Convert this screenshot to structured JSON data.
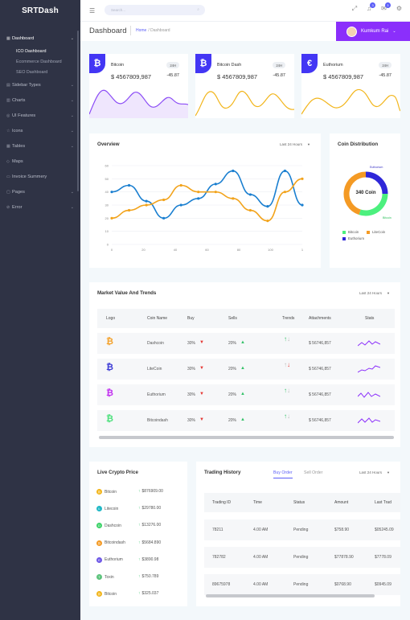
{
  "brand": "SRTDash",
  "sidebar": {
    "items": [
      {
        "label": "Dashboard",
        "icon": "dashboard-icon",
        "active": true
      },
      {
        "label": "Sidebar Types",
        "icon": "layout-icon"
      },
      {
        "label": "Charts",
        "icon": "chart-icon"
      },
      {
        "label": "UI Features",
        "icon": "palette-icon"
      },
      {
        "label": "Icons",
        "icon": "star-icon"
      },
      {
        "label": "Tables",
        "icon": "table-icon"
      },
      {
        "label": "Maps",
        "icon": "map-icon"
      },
      {
        "label": "Invoice Summery",
        "icon": "invoice-icon"
      },
      {
        "label": "Pages",
        "icon": "pages-icon"
      },
      {
        "label": "Error",
        "icon": "error-icon"
      }
    ],
    "sub": [
      "ICO Dashboard",
      "Ecommerce Dashboard",
      "SEO Dashboard"
    ]
  },
  "topbar": {
    "search_placeholder": "Search...",
    "badges": [
      "3",
      "3"
    ]
  },
  "title": {
    "page": "Dashboard",
    "home": "Home",
    "current": "Dashboard",
    "user": "Kumkum Rai"
  },
  "coins": [
    {
      "name": "Bitcoin",
      "symbol": "₿",
      "period": "24H",
      "value": "$ 4567809,987",
      "change": "-45.87",
      "color": "#8b4cf6",
      "fill": "#efe6fd"
    },
    {
      "name": "Bitcoin Dash",
      "symbol": "₿",
      "period": "24H",
      "value": "$ 4567809,987",
      "change": "-45.87",
      "color": "#f2b51b",
      "fill": "#ffffff"
    },
    {
      "name": "Euthorium",
      "symbol": "€",
      "period": "24H",
      "value": "$ 4567809,987",
      "change": "-45.87",
      "color": "#f2b51b",
      "fill": "#ffffff"
    }
  ],
  "overview": {
    "title": "Overview",
    "range": "Last 24 Hours",
    "chart_data": {
      "type": "line",
      "x": [
        0,
        10,
        20,
        30,
        40,
        50,
        60,
        70,
        80,
        90,
        100,
        110
      ],
      "ylim": [
        0,
        60
      ],
      "yticks": [
        0,
        10,
        20,
        30,
        40,
        50,
        60
      ],
      "xticks": [
        "0",
        "20",
        "40",
        "60",
        "80",
        "100",
        "1"
      ],
      "series": [
        {
          "color": "#1a7fd0",
          "values": [
            40,
            45,
            33,
            20,
            30,
            35,
            46,
            56,
            38,
            29,
            56,
            30
          ]
        },
        {
          "color": "#f2a31b",
          "values": [
            20,
            26,
            30,
            34,
            45,
            40,
            40,
            35,
            26,
            18,
            40,
            50
          ]
        }
      ]
    }
  },
  "distribution": {
    "title": "Coin Distribution",
    "center": "340 Coin",
    "chart_data": {
      "type": "pie",
      "labels": [
        "Bitcoin",
        "LiteCoin",
        "Euthorium"
      ],
      "values": [
        30,
        45,
        25
      ],
      "colors": [
        "#4cf07e",
        "#f49a24",
        "#2f27d8"
      ]
    },
    "slice_labels": {
      "top": "Euthorium",
      "right": "Bitcoin"
    }
  },
  "market": {
    "title": "Market Value And Trends",
    "range": "Last 24 Hours",
    "headers": [
      "Logo",
      "Coin Name",
      "Buy",
      "Sells",
      "Trends",
      "Attachments",
      "Stats"
    ],
    "rows": [
      {
        "logo": "₿",
        "logo_color": "#f4a12a",
        "name": "Dashcoin",
        "buy": "30%",
        "sells": "20%",
        "attach": "$ 56746,857",
        "trend_up": true
      },
      {
        "logo": "₿",
        "logo_color": "#3d3bd6",
        "name": "LiteCoin",
        "buy": "30%",
        "sells": "20%",
        "attach": "$ 56746,857",
        "trend_up": false
      },
      {
        "logo": "₿",
        "logo_color": "#c12ef0",
        "name": "Euthorium",
        "buy": "30%",
        "sells": "20%",
        "attach": "$ 56746,857",
        "trend_up": true
      },
      {
        "logo": "₿",
        "logo_color": "#4ce07c",
        "name": "Bitcoindash",
        "buy": "30%",
        "sells": "20%",
        "attach": "$ 56746,857",
        "trend_up": true
      }
    ]
  },
  "live": {
    "title": "Live Crypto Price",
    "rows": [
      {
        "name": "Bitcoin",
        "price": "$876909.00",
        "color": "#f2b51b",
        "sym": "₿"
      },
      {
        "name": "Litecoin",
        "price": "$29780.00",
        "color": "#21b8c6",
        "sym": "Ł"
      },
      {
        "name": "Dashcoin",
        "price": "$13276.00",
        "color": "#3fd36a",
        "sym": "D"
      },
      {
        "name": "Bitcoindash",
        "price": "$5684.890",
        "color": "#f49a24",
        "sym": "₿"
      },
      {
        "name": "Euthorium",
        "price": "$3890.98",
        "color": "#6d57e6",
        "sym": "E"
      },
      {
        "name": "Toxin",
        "price": "$750.789",
        "color": "#5ec47d",
        "sym": "T"
      },
      {
        "name": "Bitcoin",
        "price": "$325.037",
        "color": "#f2b51b",
        "sym": "₿"
      }
    ]
  },
  "trading": {
    "title": "Trading History",
    "tabs": [
      "Buy Order",
      "Sell Order"
    ],
    "range": "Last 24 Hours",
    "headers": [
      "Trading ID",
      "Time",
      "Status",
      "Amount",
      "Last Trad"
    ],
    "rows": [
      {
        "id": "78211",
        "time": "4.00 AM",
        "status": "Pending",
        "amount": "$758.90",
        "last": "$05245.09"
      },
      {
        "id": "782782",
        "time": "4.00 AM",
        "status": "Pending",
        "amount": "$77878.90",
        "last": "$7778.09"
      },
      {
        "id": "89675978",
        "time": "4.00 AM",
        "status": "Pending",
        "amount": "$0768.90",
        "last": "$0945.09"
      }
    ]
  }
}
